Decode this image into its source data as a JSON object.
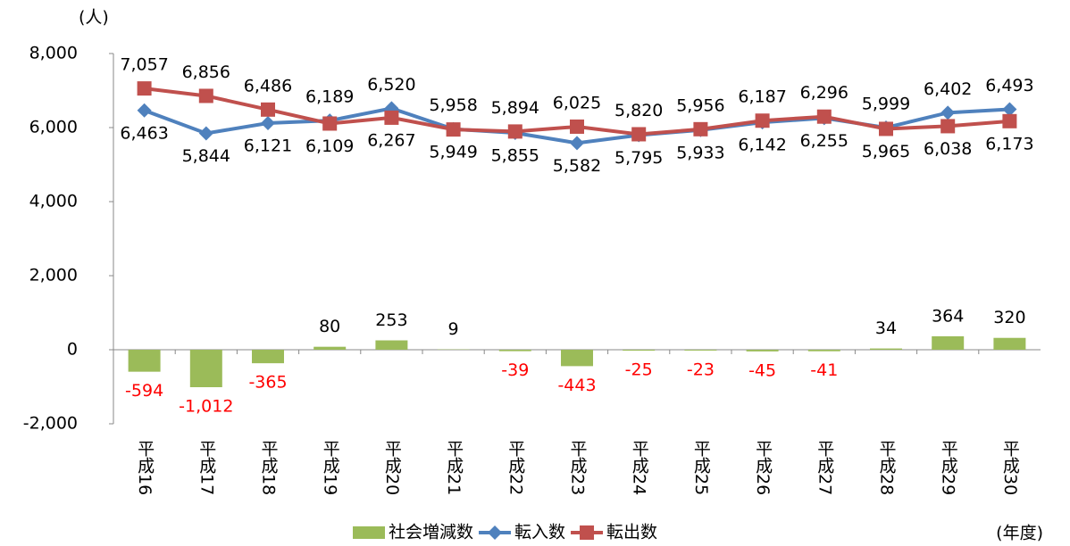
{
  "chart_data": {
    "type": "combo",
    "y_unit": "(人)",
    "x_unit": "(年度)",
    "categories": [
      "平成16",
      "平成17",
      "平成18",
      "平成19",
      "平成20",
      "平成21",
      "平成22",
      "平成23",
      "平成24",
      "平成25",
      "平成26",
      "平成27",
      "平成28",
      "平成29",
      "平成30"
    ],
    "series": [
      {
        "name": "社会増減数",
        "type": "bar",
        "color": "#9bbb59",
        "values": [
          -594,
          -1012,
          -365,
          80,
          253,
          9,
          -39,
          -443,
          -25,
          -23,
          -45,
          -41,
          34,
          364,
          320
        ],
        "value_labels": [
          "-594",
          "-1,012",
          "-365",
          "80",
          "253",
          "9",
          "-39",
          "-443",
          "-25",
          "-23",
          "-45",
          "-41",
          "34",
          "364",
          "320"
        ]
      },
      {
        "name": "転入数",
        "type": "line",
        "marker": "diamond",
        "color": "#4f81bd",
        "values": [
          6463,
          5844,
          6121,
          6189,
          6520,
          5958,
          5855,
          5582,
          5795,
          5933,
          6142,
          6255,
          5999,
          6402,
          6493
        ],
        "value_labels": [
          "6,463",
          "5,844",
          "6,121",
          "6,189",
          "6,520",
          "5,958",
          "5,855",
          "5,582",
          "5,795",
          "5,933",
          "6,142",
          "6,255",
          "5,999",
          "6,402",
          "6,493"
        ]
      },
      {
        "name": "転出数",
        "type": "line",
        "marker": "square",
        "color": "#c0504d",
        "values": [
          7057,
          6856,
          6486,
          6109,
          6267,
          5949,
          5894,
          6025,
          5820,
          5956,
          6187,
          6296,
          5965,
          6038,
          6173
        ],
        "value_labels": [
          "7,057",
          "6,856",
          "6,486",
          "6,109",
          "6,267",
          "5,949",
          "5,894",
          "6,025",
          "5,820",
          "5,956",
          "6,187",
          "6,296",
          "5,965",
          "6,038",
          "6,173"
        ]
      }
    ],
    "ylim": [
      -2000,
      8000
    ],
    "yticks": [
      {
        "value": -2000,
        "label": "-2,000"
      },
      0,
      {
        "value": 2000,
        "label": "2,000"
      },
      {
        "value": 4000,
        "label": "4,000"
      },
      {
        "value": 6000,
        "label": "6,000"
      },
      {
        "value": 8000,
        "label": "8,000"
      }
    ],
    "legend": "bottom"
  }
}
